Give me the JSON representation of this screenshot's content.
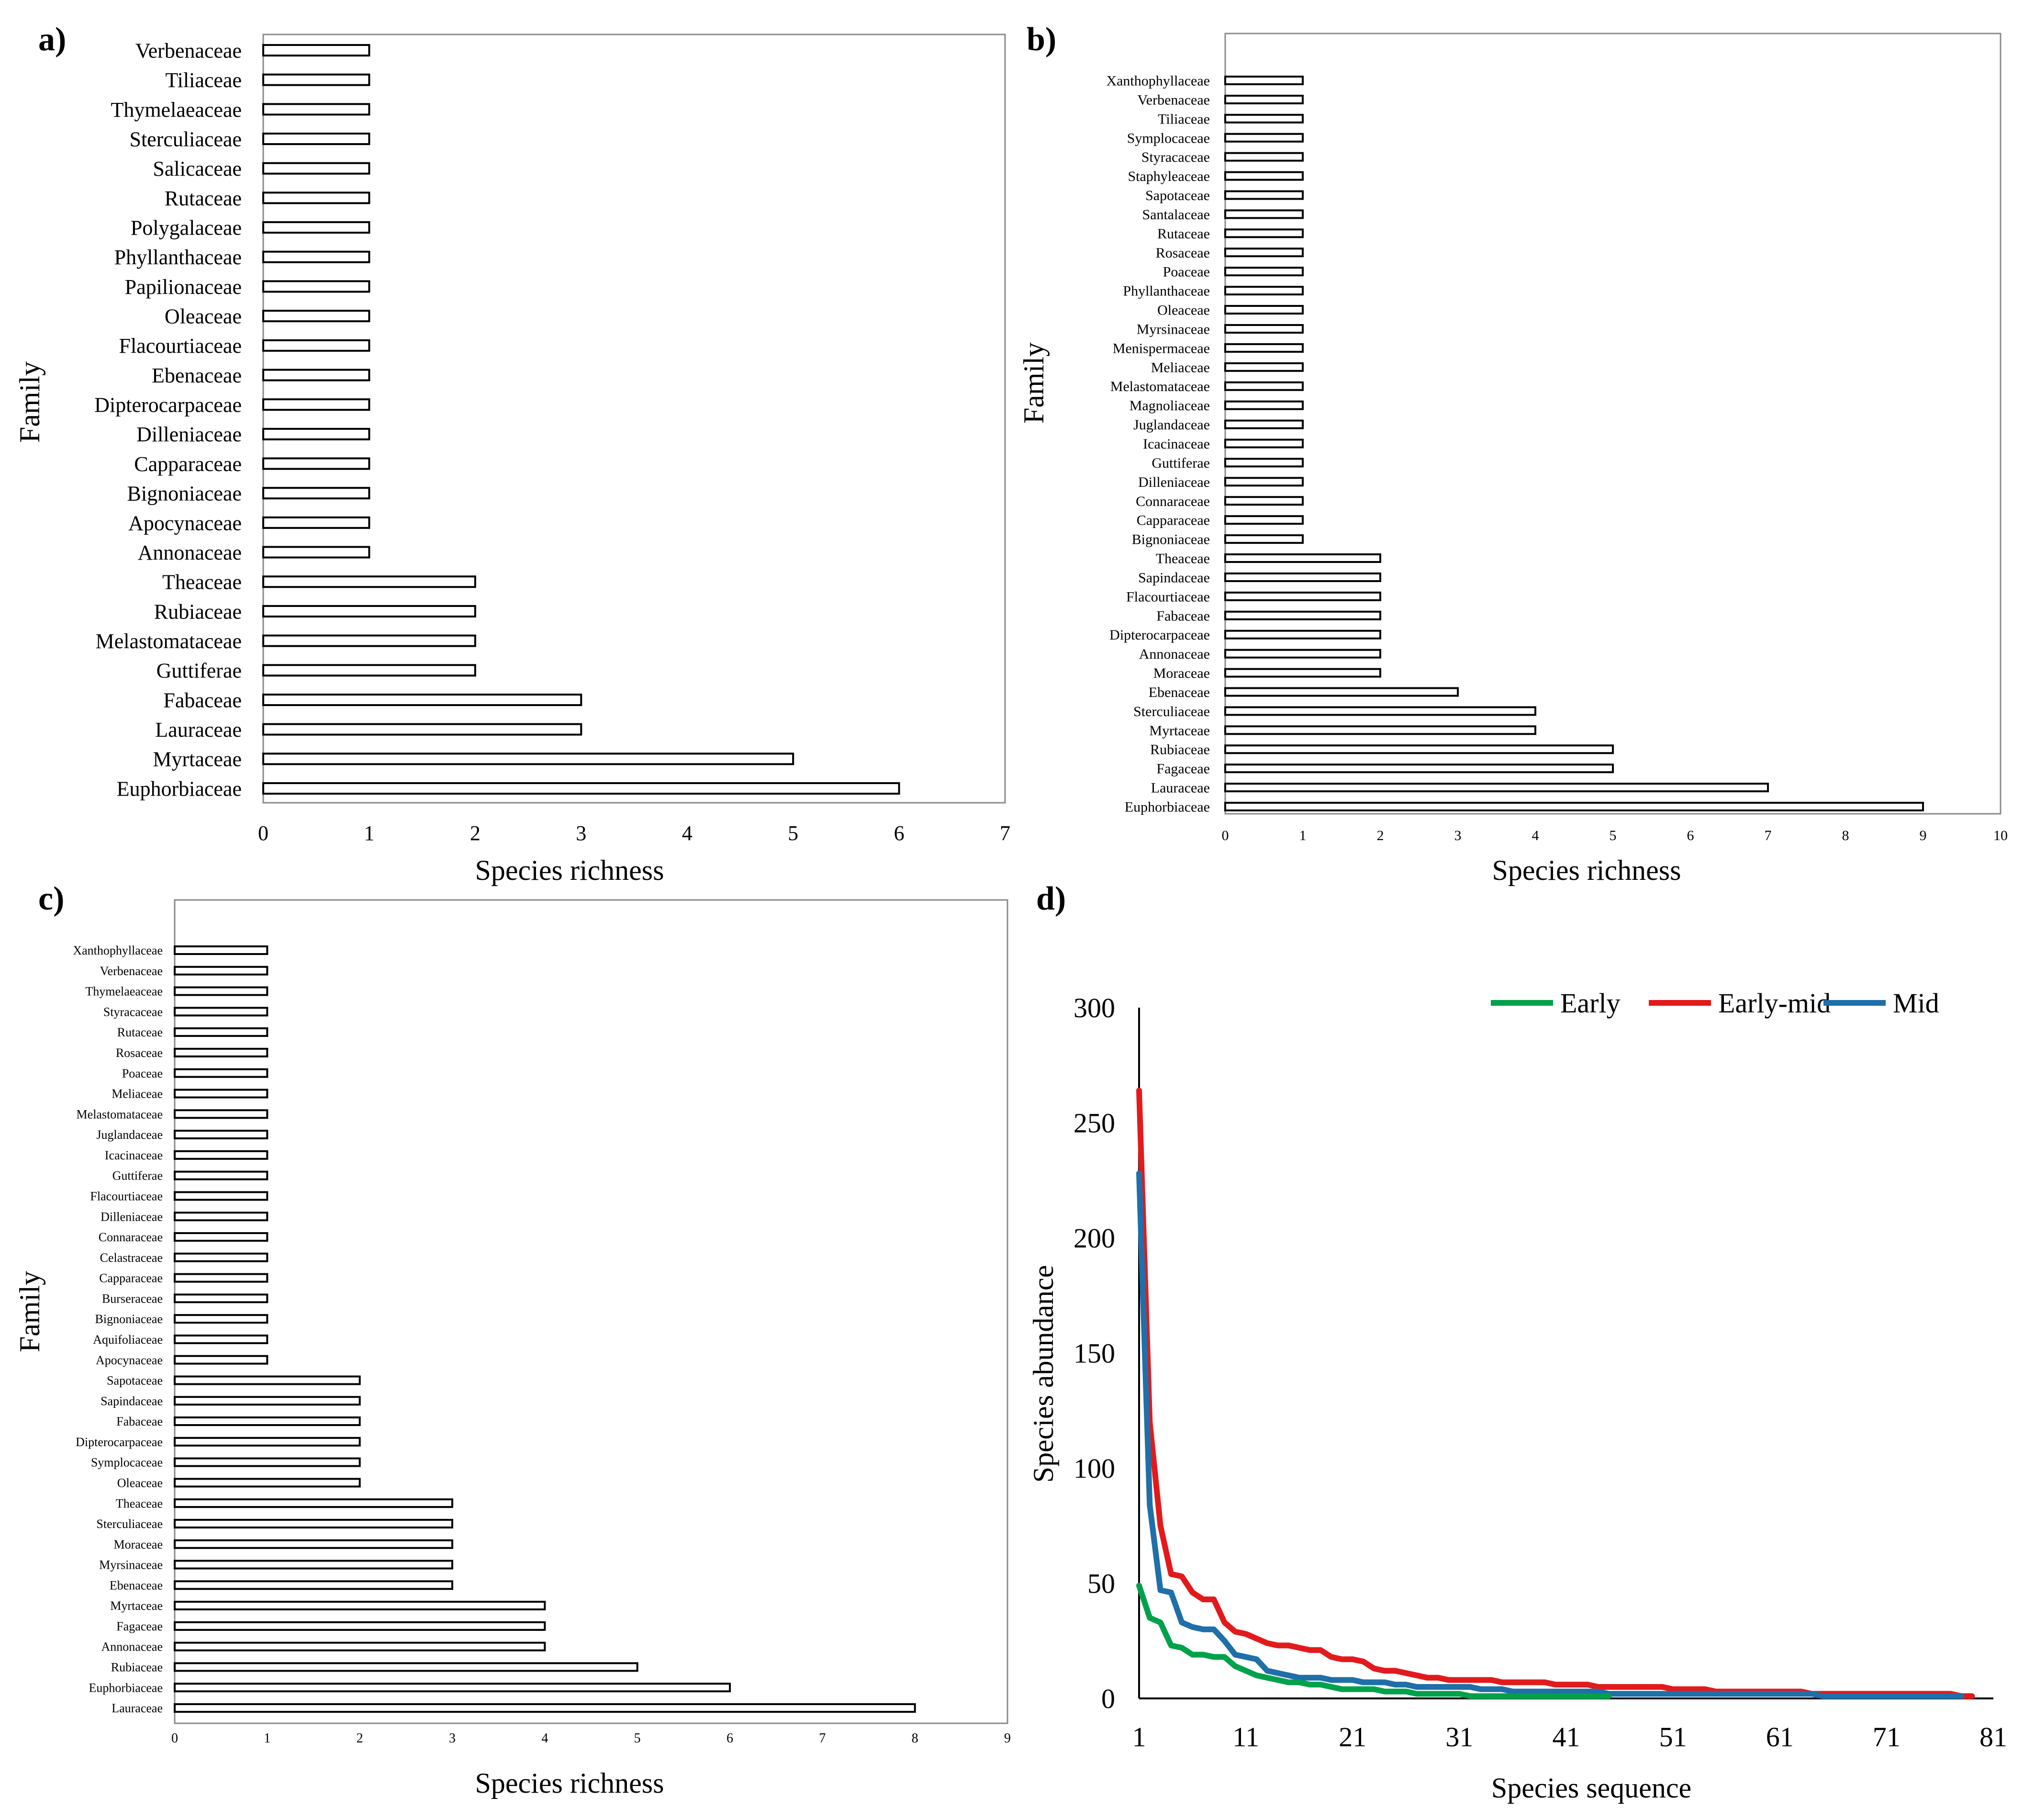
{
  "figure": {
    "panel_labels": [
      "a)",
      "b)",
      "c)",
      "d)"
    ]
  },
  "chart_data": [
    {
      "panel": "a)",
      "type": "bar",
      "orientation": "horizontal",
      "title": "",
      "xlabel": "Species richness",
      "ylabel": "Family",
      "xlim": [
        0,
        7
      ],
      "xticks": [
        0,
        1,
        2,
        3,
        4,
        5,
        6,
        7
      ],
      "categories": [
        "Verbenaceae",
        "Tiliaceae",
        "Thymelaeaceae",
        "Sterculiaceae",
        "Salicaceae",
        "Rutaceae",
        "Polygalaceae",
        "Phyllanthaceae",
        "Papilionaceae",
        "Oleaceae",
        "Flacourtiaceae",
        "Ebenaceae",
        "Dipterocarpaceae",
        "Dilleniaceae",
        "Capparaceae",
        "Bignoniaceae",
        "Apocynaceae",
        "Annonaceae",
        "Theaceae",
        "Rubiaceae",
        "Melastomataceae",
        "Guttiferae",
        "Fabaceae",
        "Lauraceae",
        "Myrtaceae",
        "Euphorbiaceae"
      ],
      "values": [
        1,
        1,
        1,
        1,
        1,
        1,
        1,
        1,
        1,
        1,
        1,
        1,
        1,
        1,
        1,
        1,
        1,
        1,
        2,
        2,
        2,
        2,
        3,
        3,
        5,
        6
      ]
    },
    {
      "panel": "b)",
      "type": "bar",
      "orientation": "horizontal",
      "title": "",
      "xlabel": "Species richness",
      "ylabel": "Family",
      "xlim": [
        0,
        10
      ],
      "xticks": [
        0,
        1,
        2,
        3,
        4,
        5,
        6,
        7,
        8,
        9,
        10
      ],
      "categories": [
        "Xanthophyllaceae",
        "Verbenaceae",
        "Tiliaceae",
        "Symplocaceae",
        "Styracaceae",
        "Staphyleaceae",
        "Sapotaceae",
        "Santalaceae",
        "Rutaceae",
        "Rosaceae",
        "Poaceae",
        "Phyllanthaceae",
        "Oleaceae",
        "Myrsinaceae",
        "Menispermaceae",
        "Meliaceae",
        "Melastomataceae",
        "Magnoliaceae",
        "Juglandaceae",
        "Icacinaceae",
        "Guttiferae",
        "Dilleniaceae",
        "Connaraceae",
        "Capparaceae",
        "Bignoniaceae",
        "Theaceae",
        "Sapindaceae",
        "Flacourtiaceae",
        "Fabaceae",
        "Dipterocarpaceae",
        "Annonaceae",
        "Moraceae",
        "Ebenaceae",
        "Sterculiaceae",
        "Myrtaceae",
        "Rubiaceae",
        "Fagaceae",
        "Lauraceae",
        "Euphorbiaceae"
      ],
      "values": [
        1,
        1,
        1,
        1,
        1,
        1,
        1,
        1,
        1,
        1,
        1,
        1,
        1,
        1,
        1,
        1,
        1,
        1,
        1,
        1,
        1,
        1,
        1,
        1,
        1,
        2,
        2,
        2,
        2,
        2,
        2,
        2,
        3,
        4,
        4,
        5,
        5,
        7,
        9
      ]
    },
    {
      "panel": "c)",
      "type": "bar",
      "orientation": "horizontal",
      "title": "",
      "xlabel": "Species richness",
      "ylabel": "Family",
      "xlim": [
        0,
        9
      ],
      "xticks": [
        0,
        1,
        2,
        3,
        4,
        5,
        6,
        7,
        8,
        9
      ],
      "categories": [
        "Xanthophyllaceae",
        "Verbenaceae",
        "Thymelaeaceae",
        "Styracaceae",
        "Rutaceae",
        "Rosaceae",
        "Poaceae",
        "Meliaceae",
        "Melastomataceae",
        "Juglandaceae",
        "Icacinaceae",
        "Guttiferae",
        "Flacourtiaceae",
        "Dilleniaceae",
        "Connaraceae",
        "Celastraceae",
        "Capparaceae",
        "Burseraceae",
        "Bignoniaceae",
        "Aquifoliaceae",
        "Apocynaceae",
        "Sapotaceae",
        "Sapindaceae",
        "Fabaceae",
        "Dipterocarpaceae",
        "Symplocaceae",
        "Oleaceae",
        "Theaceae",
        "Sterculiaceae",
        "Moraceae",
        "Myrsinaceae",
        "Ebenaceae",
        "Myrtaceae",
        "Fagaceae",
        "Annonaceae",
        "Rubiaceae",
        "Euphorbiaceae",
        "Lauraceae"
      ],
      "values": [
        1,
        1,
        1,
        1,
        1,
        1,
        1,
        1,
        1,
        1,
        1,
        1,
        1,
        1,
        1,
        1,
        1,
        1,
        1,
        1,
        1,
        2,
        2,
        2,
        2,
        2,
        2,
        3,
        3,
        3,
        3,
        3,
        4,
        4,
        4,
        5,
        6,
        8
      ]
    },
    {
      "panel": "d)",
      "type": "line",
      "title": "",
      "xlabel": "Species sequence",
      "ylabel": "Species abundance",
      "xlim": [
        1,
        81
      ],
      "ylim": [
        0,
        300
      ],
      "xticks": [
        1,
        11,
        21,
        31,
        41,
        51,
        61,
        71,
        81
      ],
      "yticks": [
        0,
        50,
        100,
        150,
        200,
        250,
        300
      ],
      "legend_position": "top-right",
      "series": [
        {
          "name": "Early",
          "color": "#00a14b",
          "values": [
            49,
            35,
            33,
            23,
            22,
            19,
            19,
            18,
            18,
            14,
            12,
            10,
            9,
            8,
            7,
            7,
            6,
            6,
            5,
            4,
            4,
            4,
            4,
            3,
            3,
            3,
            2,
            2,
            2,
            2,
            2,
            1,
            1,
            1,
            1,
            1,
            1,
            1,
            1,
            1,
            1,
            1,
            1,
            1,
            1
          ]
        },
        {
          "name": "Early-mid",
          "color": "#e31a1c",
          "values": [
            264,
            120,
            75,
            54,
            53,
            46,
            43,
            43,
            33,
            29,
            28,
            26,
            24,
            23,
            23,
            22,
            21,
            21,
            18,
            17,
            17,
            16,
            13,
            12,
            12,
            11,
            10,
            9,
            9,
            8,
            8,
            8,
            8,
            8,
            7,
            7,
            7,
            7,
            7,
            6,
            6,
            6,
            6,
            5,
            5,
            5,
            5,
            5,
            5,
            5,
            4,
            4,
            4,
            4,
            3,
            3,
            3,
            3,
            3,
            3,
            3,
            3,
            3,
            2,
            2,
            2,
            2,
            2,
            2,
            2,
            2,
            2,
            2,
            2,
            2,
            2,
            2,
            1,
            1
          ]
        },
        {
          "name": "Mid",
          "color": "#1f6fa8",
          "values": [
            228,
            84,
            47,
            46,
            33,
            31,
            30,
            30,
            25,
            19,
            18,
            17,
            12,
            11,
            10,
            9,
            9,
            9,
            8,
            8,
            8,
            7,
            7,
            7,
            6,
            6,
            5,
            5,
            5,
            5,
            5,
            5,
            4,
            4,
            4,
            3,
            3,
            3,
            3,
            3,
            3,
            3,
            3,
            3,
            2,
            2,
            2,
            2,
            2,
            2,
            2,
            2,
            2,
            2,
            2,
            2,
            2,
            2,
            2,
            2,
            2,
            2,
            2,
            2,
            1,
            1,
            1,
            1,
            1,
            1,
            1,
            1,
            1,
            1,
            1,
            1,
            1,
            1
          ]
        }
      ]
    }
  ]
}
